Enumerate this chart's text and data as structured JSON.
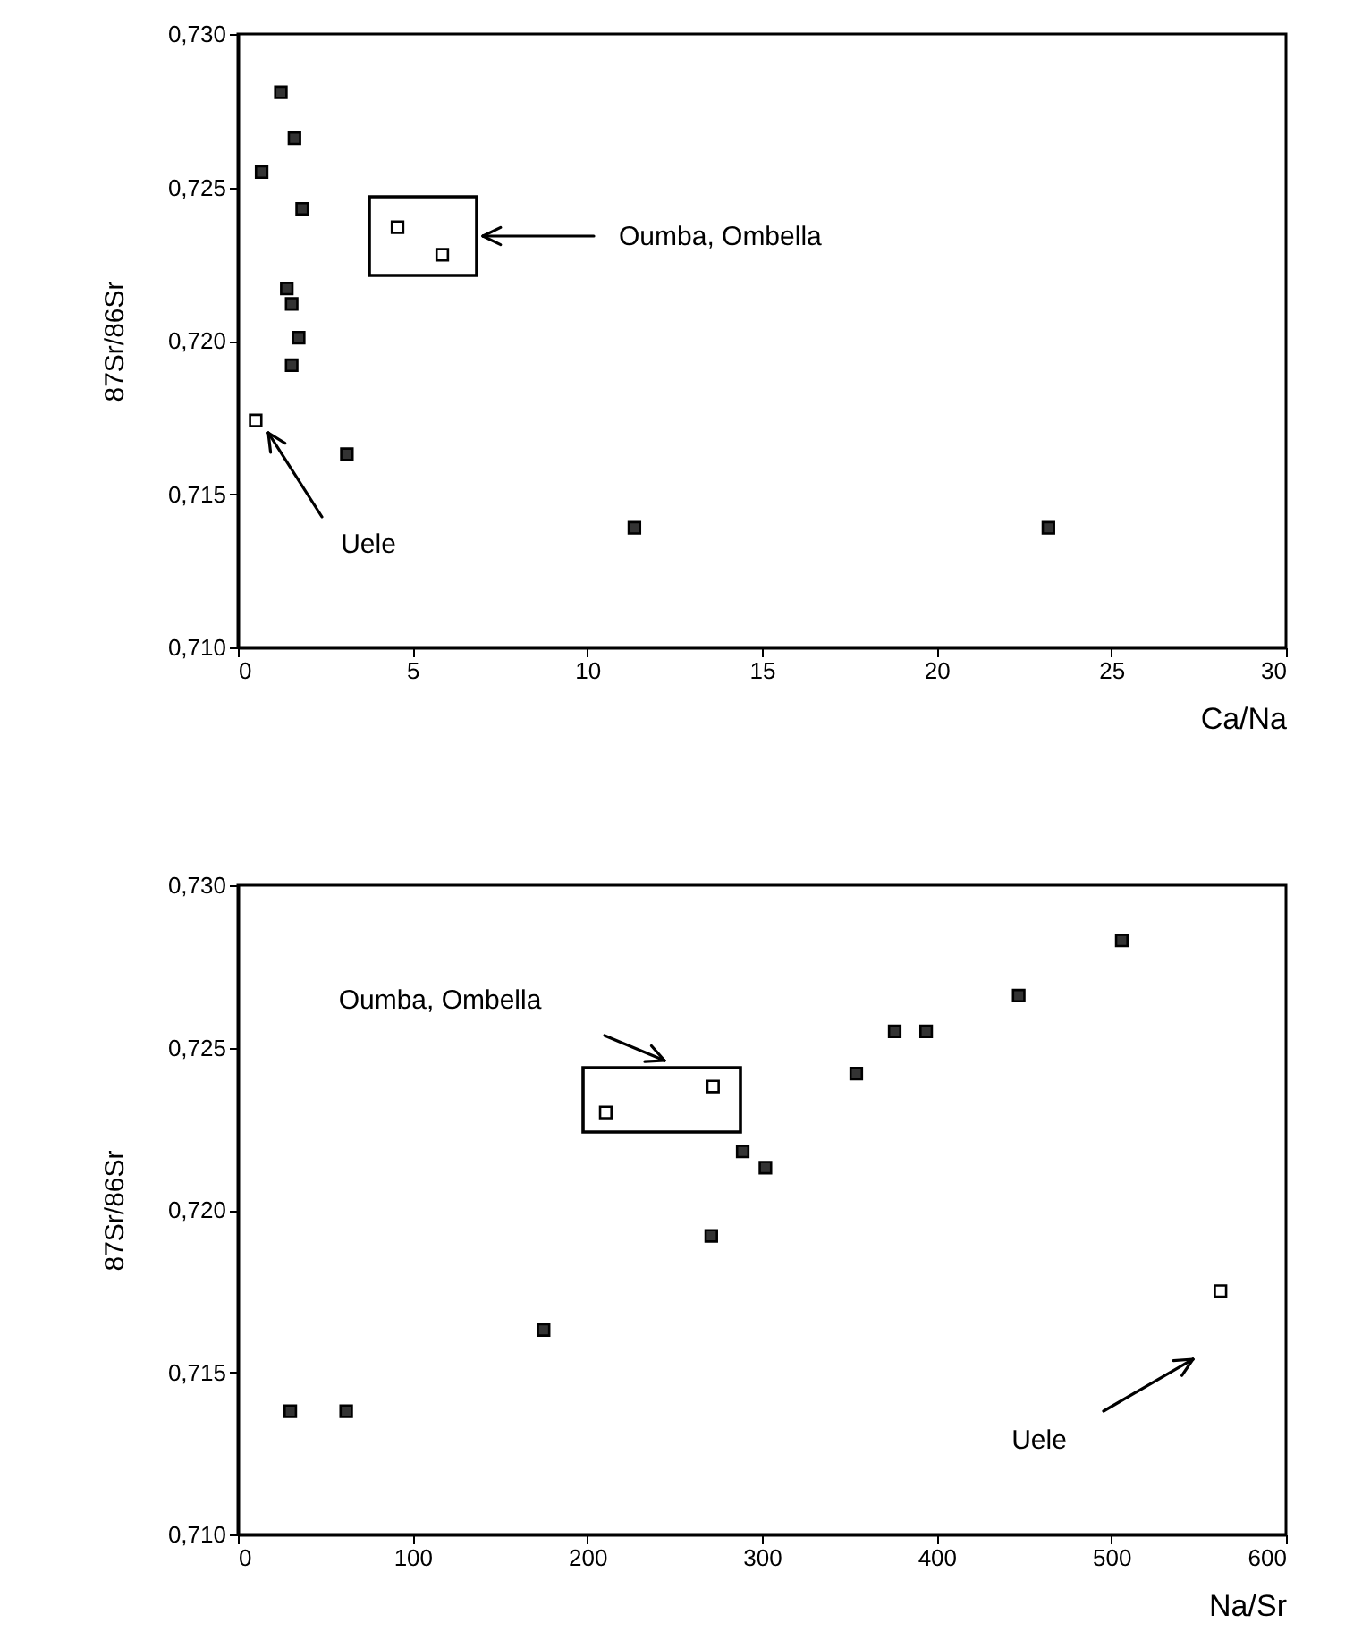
{
  "chart_data": [
    {
      "type": "scatter",
      "xlabel": "Ca/Na",
      "ylabel": "87Sr/86Sr",
      "marker": "square",
      "grid": false,
      "xlim": [
        0,
        30
      ],
      "xticks": [
        0,
        5,
        10,
        15,
        20,
        25,
        30
      ],
      "ylim": [
        0.71,
        0.73
      ],
      "yticks": [
        {
          "value": 0.71,
          "label": "0,710"
        },
        {
          "value": 0.715,
          "label": "0,715"
        },
        {
          "value": 0.72,
          "label": "0,720"
        },
        {
          "value": 0.725,
          "label": "0,725"
        },
        {
          "value": 0.73,
          "label": "0,730"
        }
      ],
      "series": [
        {
          "color": "#333333",
          "x": [
            1.23,
            1.62,
            0.68,
            1.84,
            1.4,
            1.54,
            1.74,
            1.54,
            3.12,
            11.35,
            23.2
          ],
          "values": [
            0.7281,
            0.7266,
            0.7255,
            0.7243,
            0.7217,
            0.7212,
            0.7201,
            0.7192,
            0.7163,
            0.7139,
            0.7139
          ]
        },
        {
          "color": "#ffffff",
          "x": [
            4.57,
            5.85,
            0.51
          ],
          "values": [
            0.7237,
            0.7228,
            0.7174
          ]
        }
      ],
      "annotations": [
        "Oumba, Ombella",
        "Uele"
      ]
    },
    {
      "type": "scatter",
      "xlabel": "Na/Sr",
      "ylabel": "87Sr/86Sr",
      "marker": "square",
      "grid": false,
      "xlim": [
        0,
        600
      ],
      "xticks": [
        0,
        100,
        200,
        300,
        400,
        500,
        600
      ],
      "ylim": [
        0.71,
        0.73
      ],
      "yticks": [
        {
          "value": 0.71,
          "label": "0,710"
        },
        {
          "value": 0.715,
          "label": "0,715"
        },
        {
          "value": 0.72,
          "label": "0,720"
        },
        {
          "value": 0.725,
          "label": "0,725"
        },
        {
          "value": 0.73,
          "label": "0,730"
        }
      ],
      "series": [
        {
          "color": "#333333",
          "x": [
            30,
            62,
            175,
            271,
            289,
            302,
            354,
            376,
            394,
            447,
            506
          ],
          "values": [
            0.7138,
            0.7138,
            0.7163,
            0.7192,
            0.7218,
            0.7213,
            0.7242,
            0.7255,
            0.7255,
            0.7266,
            0.7283
          ]
        },
        {
          "color": "#ffffff",
          "x": [
            210.6,
            272,
            562.5
          ],
          "values": [
            0.723,
            0.7238,
            0.7175
          ]
        }
      ],
      "annotations": [
        "Oumba, Ombella",
        "Uele"
      ]
    }
  ]
}
